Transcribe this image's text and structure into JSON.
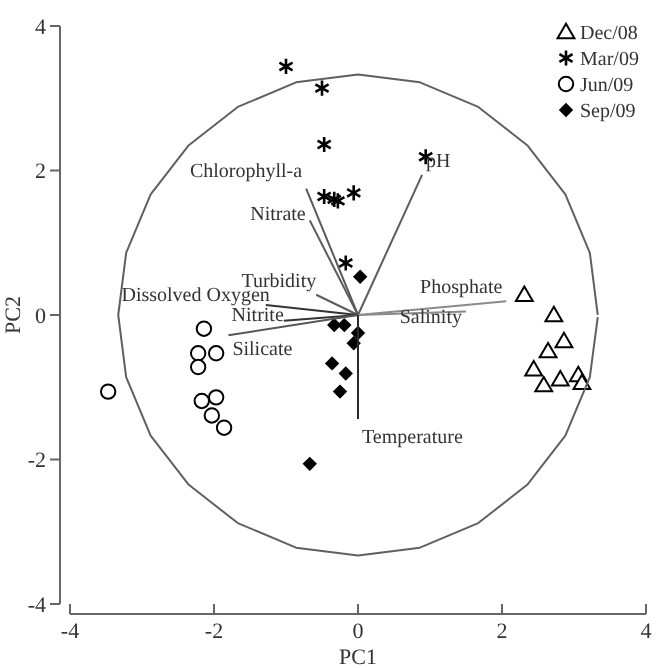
{
  "chart_data": {
    "type": "scatter",
    "xlabel": "PC1",
    "ylabel": "PC2",
    "xlim": [
      -4,
      4
    ],
    "ylim": [
      -4,
      4
    ],
    "xticks": [
      -4,
      -2,
      0,
      2,
      4
    ],
    "yticks": [
      -4,
      -2,
      0,
      2,
      4
    ],
    "grid": false,
    "legend": "top right",
    "series": [
      {
        "name": "Dec/08",
        "color": "#000000",
        "marker": "triangle",
        "x": [
          2.31,
          2.72,
          2.86,
          2.64,
          2.44,
          2.58,
          2.81,
          3.06,
          3.11
        ],
        "values": [
          0.28,
          0.0,
          -0.36,
          -0.5,
          -0.75,
          -0.97,
          -0.89,
          -0.83,
          -0.94
        ]
      },
      {
        "name": "Mar/09",
        "color": "#000000",
        "marker": "cross",
        "x": [
          -1.0,
          -0.5,
          -0.47,
          -0.47,
          -0.33,
          -0.28,
          -0.06,
          0.94,
          -0.17
        ],
        "values": [
          3.44,
          3.14,
          2.36,
          1.64,
          1.6,
          1.58,
          1.69,
          2.19,
          0.72
        ]
      },
      {
        "name": "Jun/09",
        "color": "#000000",
        "marker": "circle",
        "x": [
          -2.14,
          -2.22,
          -1.97,
          -2.22,
          -3.47,
          -2.17,
          -1.97,
          -2.03,
          -1.86
        ],
        "values": [
          -0.19,
          -0.53,
          -0.53,
          -0.72,
          -1.06,
          -1.19,
          -1.14,
          -1.39,
          -1.56
        ]
      },
      {
        "name": "Sep/09",
        "color": "#000000",
        "marker": "diamond",
        "x": [
          0.03,
          -0.33,
          -0.19,
          0,
          -0.06,
          -0.36,
          -0.17,
          -0.25,
          -0.67
        ],
        "values": [
          0.53,
          -0.14,
          -0.14,
          -0.25,
          -0.39,
          -0.67,
          -0.81,
          -1.06,
          -2.06
        ]
      },
      {
        "type": "line",
        "color": "#606060",
        "marker": "none",
        "x": [
          3.33,
          3.22,
          2.88,
          2.35,
          1.67,
          0.86,
          0,
          -0.86,
          -1.67,
          -2.35,
          -2.88,
          -3.22,
          -3.33,
          -3.22,
          -2.88,
          -2.35,
          -1.67,
          -0.86,
          0,
          0.86,
          1.67,
          2.35,
          2.88,
          3.22,
          3.33
        ],
        "values": [
          0,
          0.86,
          1.67,
          2.35,
          2.88,
          3.22,
          3.33,
          3.22,
          2.88,
          2.35,
          1.67,
          0.86,
          0,
          -0.86,
          -1.67,
          -2.35,
          -2.88,
          -3.22,
          -3.33,
          -3.22,
          -2.88,
          -2.35,
          -1.67,
          -0.86,
          -0.03
        ]
      },
      {
        "type": "line",
        "name": "Chlorophyll-a",
        "color": "#5a5a5a",
        "marker": "none",
        "x": [
          0,
          -0.72
        ],
        "values": [
          0,
          1.75
        ]
      },
      {
        "type": "line",
        "name": "Nitrate",
        "color": "#5b5b5b",
        "marker": "none",
        "x": [
          0,
          -0.67
        ],
        "values": [
          0,
          1.31
        ]
      },
      {
        "type": "line",
        "name": "pH",
        "color": "#5c5c5c",
        "marker": "none",
        "x": [
          0,
          0.89
        ],
        "values": [
          0,
          1.94
        ]
      },
      {
        "type": "line",
        "name": "Turbidity",
        "color": "#5d5d5d",
        "marker": "none",
        "x": [
          0,
          -0.58
        ],
        "values": [
          0,
          0.28
        ]
      },
      {
        "type": "line",
        "name": "Dissolved Oxygen",
        "color": "#333333",
        "marker": "none",
        "x": [
          0,
          -1.28
        ],
        "values": [
          0,
          0.14
        ]
      },
      {
        "type": "line",
        "name": "Nitrite",
        "color": "#343434",
        "marker": "none",
        "x": [
          0,
          -1.03
        ],
        "values": [
          0,
          -0.08
        ]
      },
      {
        "type": "line",
        "name": "Silicate",
        "color": "#565656",
        "marker": "none",
        "x": [
          0,
          -1.8
        ],
        "values": [
          0,
          -0.28
        ]
      },
      {
        "type": "line",
        "name": "Phosphate",
        "color": "#8a8a8a",
        "marker": "none",
        "x": [
          0,
          2.06
        ],
        "values": [
          0,
          0.19
        ]
      },
      {
        "type": "line",
        "name": "Salinity",
        "color": "#8b8b8b",
        "marker": "none",
        "x": [
          0,
          1.5
        ],
        "values": [
          0,
          0.05
        ]
      },
      {
        "type": "line",
        "name": "Temperature",
        "color": "#2a2a2a",
        "marker": "none",
        "x": [
          0,
          0
        ],
        "values": [
          0,
          -1.44
        ]
      }
    ]
  }
}
